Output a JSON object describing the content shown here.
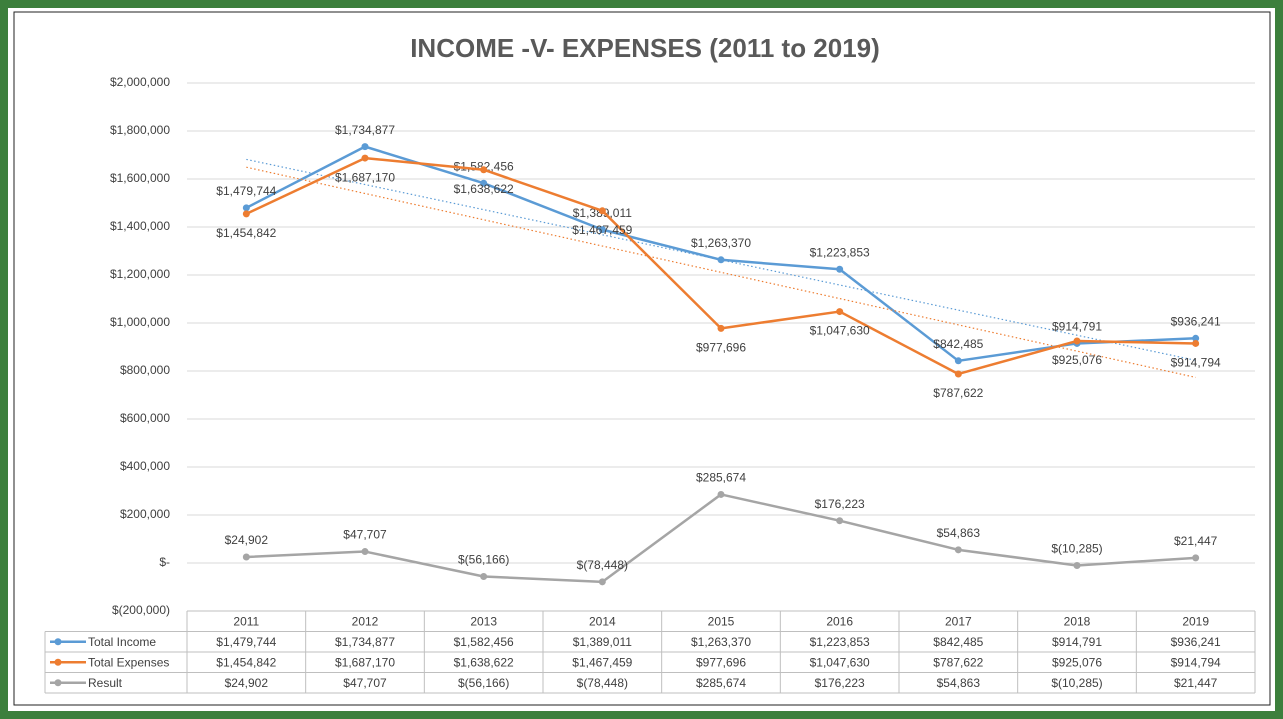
{
  "chart_data": {
    "type": "line",
    "title": "INCOME -V- EXPENSES (2011 to 2019)",
    "categories": [
      "2011",
      "2012",
      "2013",
      "2014",
      "2015",
      "2016",
      "2017",
      "2018",
      "2019"
    ],
    "series": [
      {
        "name": "Total Income",
        "color": "#5b9bd5",
        "trendline": true,
        "values": [
          1479744,
          1734877,
          1582456,
          1389011,
          1263370,
          1223853,
          842485,
          914791,
          936241
        ],
        "value_labels": [
          "$1,479,744",
          "$1,734,877",
          "$1,582,456",
          "$1,389,011",
          "$1,263,370",
          "$1,223,853",
          "$842,485",
          "$914,791",
          "$936,241"
        ]
      },
      {
        "name": "Total Expenses",
        "color": "#ed7d31",
        "trendline": true,
        "values": [
          1454842,
          1687170,
          1638622,
          1467459,
          977696,
          1047630,
          787622,
          925076,
          914794
        ],
        "value_labels": [
          "$1,454,842",
          "$1,687,170",
          "$1,638,622",
          "$1,467,459",
          "$977,696",
          "$1,047,630",
          "$787,622",
          "$925,076",
          "$914,794"
        ]
      },
      {
        "name": "Result",
        "color": "#a5a5a5",
        "trendline": false,
        "values": [
          24902,
          47707,
          -56166,
          -78448,
          285674,
          176223,
          54863,
          -10285,
          21447
        ],
        "value_labels": [
          "$24,902",
          "$47,707",
          "$(56,166)",
          "$(78,448)",
          "$285,674",
          "$176,223",
          "$54,863",
          "$(10,285)",
          "$21,447"
        ]
      }
    ],
    "ylim": [
      -200000,
      2000000
    ],
    "yticks": [
      {
        "value": -200000,
        "label": "$(200,000)"
      },
      {
        "value": 0,
        "label": "$-"
      },
      {
        "value": 200000,
        "label": "$200,000"
      },
      {
        "value": 400000,
        "label": "$400,000"
      },
      {
        "value": 600000,
        "label": "$600,000"
      },
      {
        "value": 800000,
        "label": "$800,000"
      },
      {
        "value": 1000000,
        "label": "$1,000,000"
      },
      {
        "value": 1200000,
        "label": "$1,200,000"
      },
      {
        "value": 1400000,
        "label": "$1,400,000"
      },
      {
        "value": 1600000,
        "label": "$1,600,000"
      },
      {
        "value": 1800000,
        "label": "$1,800,000"
      },
      {
        "value": 2000000,
        "label": "$2,000,000"
      }
    ],
    "grid": true,
    "legend": "data-table"
  }
}
